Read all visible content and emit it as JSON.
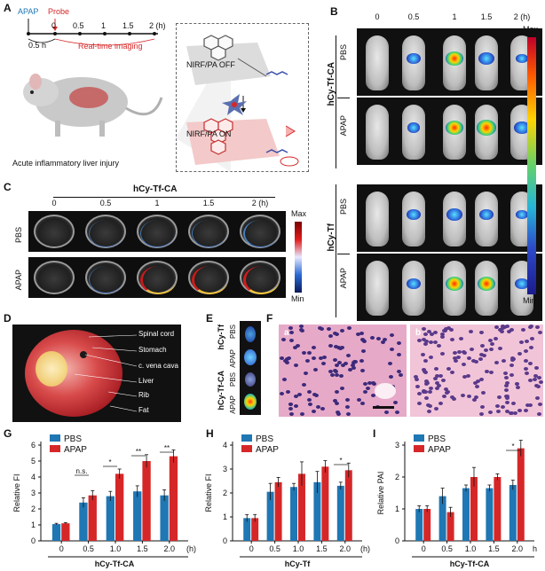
{
  "panels": {
    "A": {
      "letter": "A",
      "apap": "APAP",
      "probe": "Probe",
      "ticks": [
        "0",
        "0.5",
        "1",
        "1.5",
        "2 (h)"
      ],
      "pre_interval": "0.5 h",
      "imaging": "Real-time imaging",
      "caption": "Acute inflammatory liver injury",
      "off_label": "NIRF/PA OFF",
      "on_label": "NIRF/PA ON"
    },
    "B": {
      "letter": "B",
      "times": [
        "0",
        "0.5",
        "1",
        "1.5",
        "2 (h)"
      ],
      "rows": [
        "PBS",
        "APAP",
        "PBS",
        "APAP"
      ],
      "groups": [
        "hCy-Tf-CA",
        "hCy-Tf"
      ],
      "scale_max": "Max",
      "scale_min": "Min"
    },
    "C": {
      "letter": "C",
      "title": "hCy-Tf-CA",
      "times": [
        "0",
        "0.5",
        "1",
        "1.5",
        "2 (h)"
      ],
      "rows": [
        "PBS",
        "APAP"
      ],
      "scale_max": "Max",
      "scale_min": "Min"
    },
    "D": {
      "letter": "D",
      "labels": [
        "Spinal cord",
        "Stomach",
        "c. vena cava",
        "Liver",
        "Rib",
        "Fat"
      ]
    },
    "E": {
      "letter": "E",
      "groups": [
        "hCy-Tf",
        "hCy-Tf-CA"
      ],
      "rows": [
        "PBS",
        "APAP",
        "PBS",
        "APAP"
      ]
    },
    "F": {
      "letter": "F",
      "sub_a": "a",
      "sub_b": "b"
    }
  },
  "colors": {
    "pbs": "#1f77b4",
    "apap": "#d62728"
  },
  "chart_data": [
    {
      "panel": "G",
      "type": "bar",
      "categories": [
        "0",
        "0.5",
        "1.0",
        "1.5",
        "2.0"
      ],
      "x_unit": "(h)",
      "ylabel": "Relative FI",
      "xlabel": "hCy-Tf-CA",
      "ylim": [
        0,
        6
      ],
      "yticks": [
        0,
        1,
        2,
        3,
        4,
        5,
        6
      ],
      "series": [
        {
          "name": "PBS",
          "values": [
            1.05,
            2.4,
            2.8,
            3.1,
            2.85
          ],
          "errors": [
            0.05,
            0.3,
            0.3,
            0.35,
            0.35
          ]
        },
        {
          "name": "APAP",
          "values": [
            1.1,
            2.85,
            4.2,
            5.0,
            5.3
          ],
          "errors": [
            0.05,
            0.3,
            0.3,
            0.4,
            0.4
          ]
        }
      ],
      "annotations": [
        "n.s.",
        "*",
        "**",
        "**"
      ]
    },
    {
      "panel": "H",
      "type": "bar",
      "categories": [
        "0",
        "0.5",
        "1.0",
        "1.5",
        "2.0"
      ],
      "x_unit": "(h)",
      "ylabel": "Relative FI",
      "xlabel": "hCy-Tf",
      "ylim": [
        0,
        4
      ],
      "yticks": [
        0,
        1,
        2,
        3,
        4
      ],
      "series": [
        {
          "name": "PBS",
          "values": [
            0.95,
            2.05,
            2.25,
            2.45,
            2.3
          ],
          "errors": [
            0.15,
            0.35,
            0.15,
            0.45,
            0.15
          ]
        },
        {
          "name": "APAP",
          "values": [
            0.95,
            2.45,
            2.8,
            3.1,
            2.95
          ],
          "errors": [
            0.15,
            0.2,
            0.5,
            0.25,
            0.3
          ]
        }
      ],
      "annotations": [
        "*"
      ]
    },
    {
      "panel": "I",
      "type": "bar",
      "categories": [
        "0",
        "0.5",
        "1.0",
        "1.5",
        "2.0"
      ],
      "x_unit": "h",
      "ylabel": "Relative PAI",
      "xlabel": "hCy-Tf-CA",
      "ylim": [
        0,
        3
      ],
      "yticks": [
        0,
        1,
        2,
        3
      ],
      "series": [
        {
          "name": "PBS",
          "values": [
            1.0,
            1.4,
            1.65,
            1.65,
            1.75
          ],
          "errors": [
            0.1,
            0.25,
            0.1,
            0.1,
            0.15
          ]
        },
        {
          "name": "APAP",
          "values": [
            1.0,
            0.9,
            2.0,
            2.0,
            2.9
          ],
          "errors": [
            0.1,
            0.15,
            0.3,
            0.1,
            0.25
          ]
        }
      ],
      "annotations": [
        "*"
      ]
    }
  ]
}
